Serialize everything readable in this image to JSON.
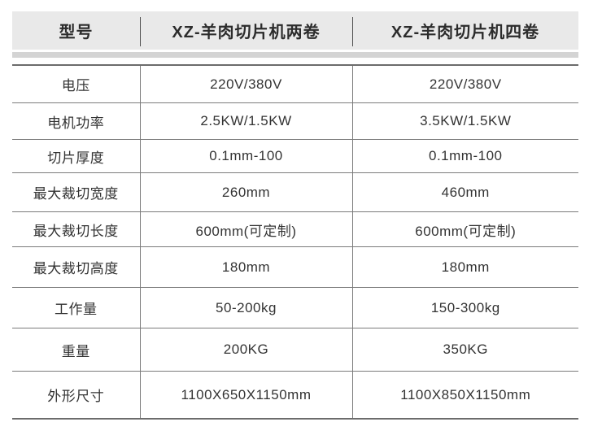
{
  "table": {
    "header_columns": [
      "型号",
      "XZ-羊肉切片机两卷",
      "XZ-羊肉切片机四卷"
    ],
    "rows": [
      [
        "电压",
        "220V/380V",
        "220V/380V"
      ],
      [
        "电机功率",
        "2.5KW/1.5KW",
        "3.5KW/1.5KW"
      ],
      [
        "切片厚度",
        "0.1mm-100",
        "0.1mm-100"
      ],
      [
        "最大裁切宽度",
        "260mm",
        "460mm"
      ],
      [
        "最大裁切长度",
        "600mm(可定制)",
        "600mm(可定制)"
      ],
      [
        "最大裁切高度",
        "180mm",
        "180mm"
      ],
      [
        "工作量",
        "50-200kg",
        "150-300kg"
      ],
      [
        "重量",
        "200KG",
        "350KG"
      ],
      [
        "外形尺寸",
        "1100X650X1150mm",
        "1100X850X1150mm"
      ]
    ]
  },
  "colors": {
    "header_background": "#e9e9e9",
    "header_shadow_strip": "#d4d4d4",
    "header_text": "#2c2c2c",
    "body_text": "#333333",
    "grid_line": "#7b7b7b"
  }
}
